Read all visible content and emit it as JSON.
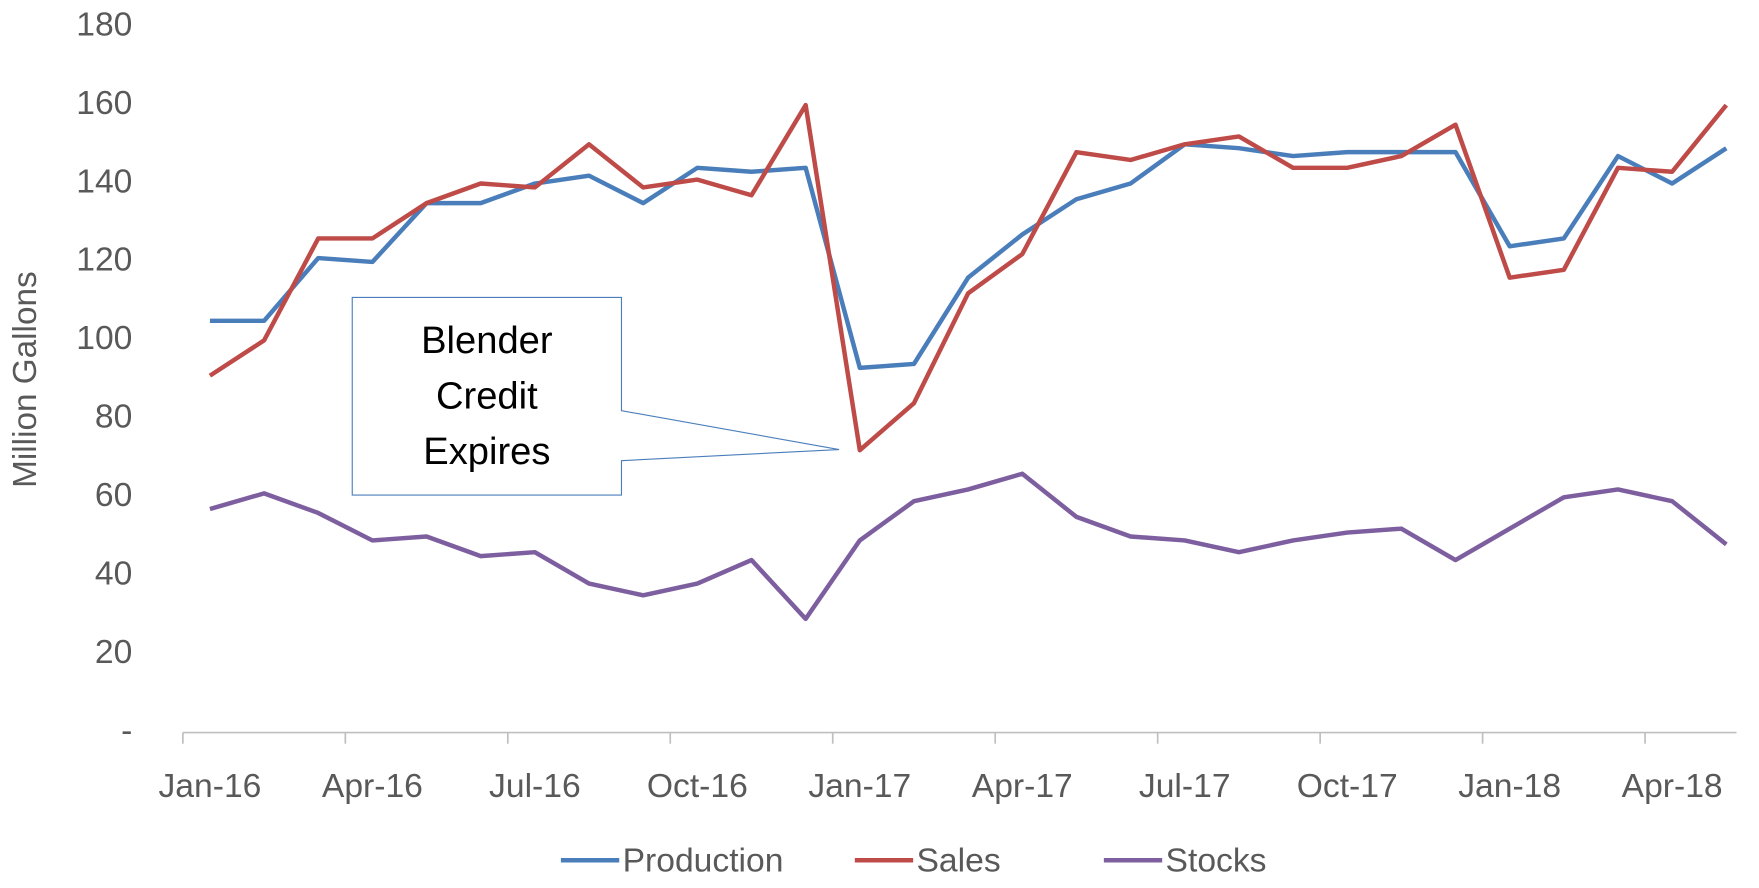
{
  "chart_data": {
    "type": "line",
    "y_label": "Million Gallons",
    "annotation": "Blender Credit Expires",
    "categories": [
      "Jan-16",
      null,
      null,
      "Apr-16",
      null,
      null,
      "Jul-16",
      null,
      null,
      "Oct-16",
      null,
      null,
      "Jan-17",
      null,
      null,
      "Apr-17",
      null,
      null,
      "Jul-17",
      null,
      null,
      "Oct-17",
      null,
      null,
      "Jan-18",
      null,
      null,
      "Apr-18",
      null
    ],
    "series": [
      {
        "name": "Production",
        "color": "#4a7ebb",
        "values": [
          105,
          105,
          121,
          120,
          135,
          135,
          140,
          142,
          135,
          144,
          143,
          144,
          93,
          94,
          116,
          127,
          136,
          140,
          150,
          149,
          147,
          148,
          148,
          148,
          124,
          126,
          147,
          140,
          149
        ]
      },
      {
        "name": "Sales",
        "color": "#be4b48",
        "values": [
          91,
          100,
          126,
          126,
          135,
          140,
          139,
          150,
          139,
          141,
          137,
          160,
          72,
          84,
          112,
          122,
          148,
          146,
          150,
          152,
          144,
          144,
          147,
          155,
          116,
          118,
          144,
          143,
          160
        ]
      },
      {
        "name": "Stocks",
        "color": "#7d5fa0",
        "values": [
          57,
          61,
          56,
          49,
          50,
          45,
          46,
          38,
          35,
          38,
          44,
          29,
          49,
          59,
          62,
          66,
          55,
          50,
          49,
          46,
          49,
          51,
          52,
          44,
          52,
          60,
          62,
          59,
          48
        ]
      }
    ],
    "ylim": [
      0,
      180
    ],
    "yticks": [
      {
        "value": 0,
        "label": "-"
      },
      20,
      40,
      60,
      80,
      100,
      120,
      140,
      160,
      180
    ],
    "grid": false,
    "legend": "bottom"
  }
}
